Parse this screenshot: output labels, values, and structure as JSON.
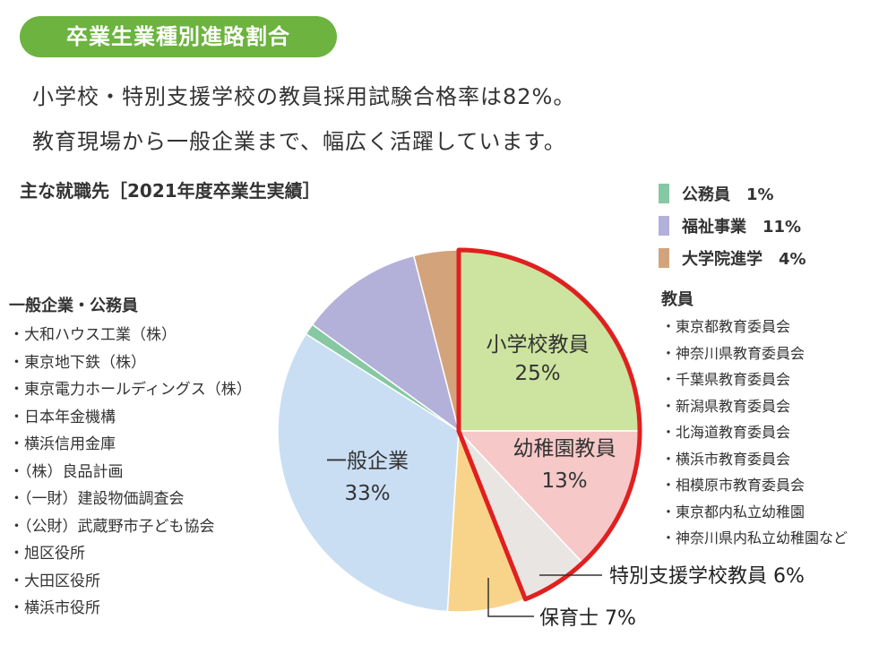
{
  "badge": "卒業生業種別進路割合",
  "lead": {
    "line1": "小学校・特別支援学校の教員採用試験合格率は82%。",
    "line2": "教育現場から一般企業まで、幅広く活躍しています。"
  },
  "chart_data": {
    "type": "pie",
    "title": "主な就職先［2021年度卒業生実績］",
    "highlight_color": "#e02020",
    "slices": [
      {
        "name": "小学校教員",
        "value": 25,
        "label": "25%",
        "color": "#cde3a0",
        "highlight": true
      },
      {
        "name": "幼稚園教員",
        "value": 13,
        "label": "13%",
        "color": "#f6c8c8",
        "highlight": true
      },
      {
        "name": "特別支援学校教員",
        "value": 6,
        "label": "6%",
        "color": "#e9e5e2",
        "highlight": true
      },
      {
        "name": "保育士",
        "value": 7,
        "label": "7%",
        "color": "#f8d48a",
        "highlight": false
      },
      {
        "name": "一般企業",
        "value": 33,
        "label": "33%",
        "color": "#c9def3",
        "highlight": false
      },
      {
        "name": "公務員",
        "value": 1,
        "label": "1%",
        "color": "#86c8a2",
        "highlight": false
      },
      {
        "name": "福祉事業",
        "value": 11,
        "label": "11%",
        "color": "#b3b0d9",
        "highlight": false
      },
      {
        "name": "大学院進学",
        "value": 4,
        "label": "4%",
        "color": "#d3a37c",
        "highlight": false
      }
    ],
    "legend": [
      {
        "label": "公務員　1%",
        "color": "#86c8a2"
      },
      {
        "label": "福祉事業　11%",
        "color": "#b3b0d9"
      },
      {
        "label": "大学院進学　4%",
        "color": "#d3a37c"
      }
    ]
  },
  "left_list": {
    "title": "一般企業・公務員",
    "items": [
      "・大和ハウス工業（株）",
      "・東京地下鉄（株）",
      "・東京電力ホールディングス（株）",
      "・日本年金機構",
      "・横浜信用金庫",
      "・（株）良品計画",
      "・（一財）建設物価調査会",
      "・（公財）武蔵野市子ども協会",
      "・旭区役所",
      "・大田区役所",
      "・横浜市役所"
    ]
  },
  "right_list": {
    "title": "教員",
    "items": [
      "・東京都教育委員会",
      "・神奈川県教育委員会",
      "・千葉県教育委員会",
      "・新潟県教育委員会",
      "・北海道教育委員会",
      "・横浜市教育委員会",
      "・相模原市教育委員会",
      "・東京都内私立幼稚園",
      "・神奈川県内私立幼稚園など"
    ]
  }
}
